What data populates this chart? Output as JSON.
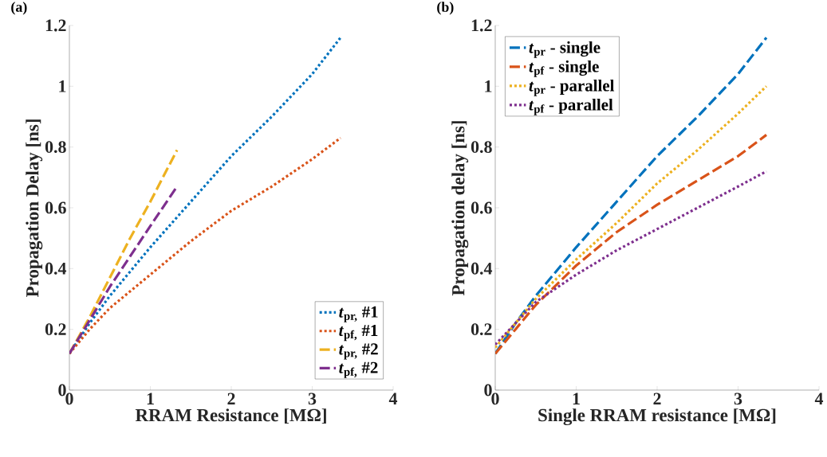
{
  "chart_data": [
    {
      "type": "line",
      "title": "(a)",
      "xlabel": "RRAM Resistance [MΩ]",
      "ylabel": "Propagation Delay [ns]",
      "xlim": [
        0,
        4
      ],
      "ylim": [
        0,
        1.2
      ],
      "xticks": [
        0,
        1,
        2,
        3,
        4
      ],
      "yticks": [
        0,
        0.2,
        0.4,
        0.6,
        0.8,
        1,
        1.2
      ],
      "grid": false,
      "legend": "bottom right",
      "series": [
        {
          "name": "*t*$_{pr,}$ #1",
          "color": "#0072bd",
          "line_style": "dotted",
          "x": [
            0,
            0.25,
            0.5,
            1,
            1.5,
            2,
            2.5,
            3,
            3.35
          ],
          "values": [
            0.12,
            0.22,
            0.31,
            0.47,
            0.62,
            0.77,
            0.9,
            1.04,
            1.16
          ]
        },
        {
          "name": "*t*$_{pf,}$ #1",
          "color": "#d95319",
          "line_style": "dotted",
          "x": [
            0,
            0.25,
            0.5,
            1,
            1.5,
            2,
            2.5,
            3,
            3.35
          ],
          "values": [
            0.12,
            0.2,
            0.27,
            0.38,
            0.49,
            0.59,
            0.67,
            0.76,
            0.83
          ]
        },
        {
          "name": "*t*$_{pr,}$ #2",
          "color": "#edb120",
          "line_style": "dashed",
          "x": [
            0,
            0.25,
            0.5,
            0.75,
            1,
            1.33
          ],
          "values": [
            0.12,
            0.24,
            0.37,
            0.5,
            0.62,
            0.79
          ]
        },
        {
          "name": "*t*$_{pf,}$ #2",
          "color": "#7e2f8e",
          "line_style": "dashed",
          "x": [
            0,
            0.25,
            0.5,
            0.75,
            1,
            1.33
          ],
          "values": [
            0.12,
            0.23,
            0.34,
            0.44,
            0.54,
            0.67
          ]
        }
      ]
    },
    {
      "type": "line",
      "title": "(b)",
      "xlabel": "Single RRAM resistance [MΩ]",
      "ylabel": "Propagation delay [ns]",
      "xlim": [
        0,
        4
      ],
      "ylim": [
        0,
        1.2
      ],
      "xticks": [
        0,
        1,
        2,
        3,
        4
      ],
      "yticks": [
        0,
        0.2,
        0.4,
        0.6,
        0.8,
        1,
        1.2
      ],
      "grid": false,
      "legend": "top left",
      "series": [
        {
          "name": "*t*$_{pr}$ - single",
          "color": "#0072bd",
          "line_style": "dashed",
          "x": [
            0,
            0.25,
            0.5,
            1,
            1.5,
            2,
            2.5,
            3,
            3.35
          ],
          "values": [
            0.12,
            0.22,
            0.31,
            0.47,
            0.62,
            0.77,
            0.9,
            1.04,
            1.16
          ]
        },
        {
          "name": "*t*$_{pf}$ - single",
          "color": "#d95319",
          "line_style": "dashed",
          "x": [
            0,
            0.25,
            0.5,
            1,
            1.5,
            2,
            2.5,
            3,
            3.35
          ],
          "values": [
            0.12,
            0.2,
            0.28,
            0.41,
            0.52,
            0.61,
            0.69,
            0.77,
            0.84
          ]
        },
        {
          "name": "*t*$_{pr}$ - parallel",
          "color": "#edb120",
          "line_style": "dotted",
          "x": [
            0,
            0.25,
            0.5,
            1,
            1.5,
            2,
            2.5,
            3,
            3.35
          ],
          "values": [
            0.14,
            0.22,
            0.3,
            0.43,
            0.55,
            0.68,
            0.79,
            0.91,
            1.0
          ]
        },
        {
          "name": "*t*$_{pf}$ - parallel",
          "color": "#7e2f8e",
          "line_style": "dotted",
          "x": [
            0,
            0.25,
            0.5,
            1,
            1.5,
            2,
            2.5,
            3,
            3.35
          ],
          "values": [
            0.15,
            0.22,
            0.29,
            0.38,
            0.46,
            0.53,
            0.6,
            0.67,
            0.72
          ]
        }
      ]
    }
  ]
}
